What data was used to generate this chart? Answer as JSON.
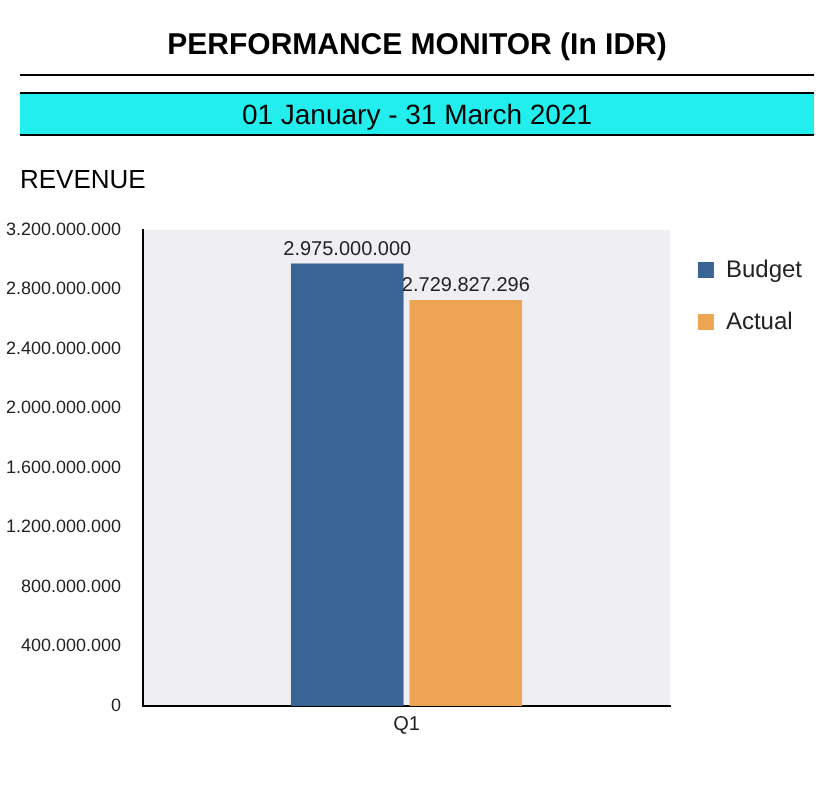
{
  "chart_data": {
    "type": "bar",
    "title": "PERFORMANCE MONITOR  (In IDR)",
    "subtitle": "01 January - 31 March 2021",
    "ylabel": "REVENUE",
    "categories": [
      "Q1"
    ],
    "series": [
      {
        "name": "Budget",
        "color": "#3a6496",
        "values": [
          2975000000
        ],
        "value_labels": [
          "2.975.000.000"
        ]
      },
      {
        "name": "Actual",
        "color": "#eda554",
        "values": [
          2729827296
        ],
        "value_labels": [
          "2.729.827.296"
        ]
      }
    ],
    "ylim": [
      0,
      3200000000
    ],
    "yticks": [
      {
        "value": 0,
        "label": "0"
      },
      {
        "value": 400000000,
        "label": "400.000.000"
      },
      {
        "value": 800000000,
        "label": "800.000.000"
      },
      {
        "value": 1200000000,
        "label": "1.200.000.000"
      },
      {
        "value": 1600000000,
        "label": "1.600.000.000"
      },
      {
        "value": 2000000000,
        "label": "2.000.000.000"
      },
      {
        "value": 2400000000,
        "label": "2.400.000.000"
      },
      {
        "value": 2800000000,
        "label": "2.800.000.000"
      },
      {
        "value": 3200000000,
        "label": "3.200.000.000"
      }
    ],
    "grid": false,
    "legend": "right"
  }
}
